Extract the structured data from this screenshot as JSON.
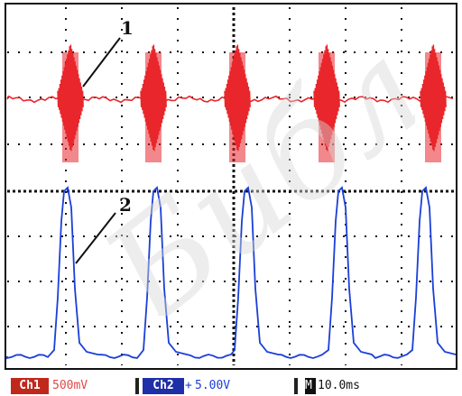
{
  "labels": {
    "trace1": "1",
    "trace2": "2"
  },
  "status_bar": {
    "ch1_tag": "Ch1",
    "ch1_scale": "500mV",
    "ch2_tag": "Ch2",
    "ch2_coupling": "+",
    "ch2_scale": "5.00V",
    "time_tag": "M",
    "time_scale": "10.0ms"
  },
  "watermark": {
    "text": "Библ"
  },
  "colors": {
    "grid": "#111111",
    "trace1": "#e8272b",
    "trace2": "#1a3fd8",
    "ch1_tag_bg": "#c0281c",
    "ch2_tag_bg": "#1f2fa8"
  }
}
